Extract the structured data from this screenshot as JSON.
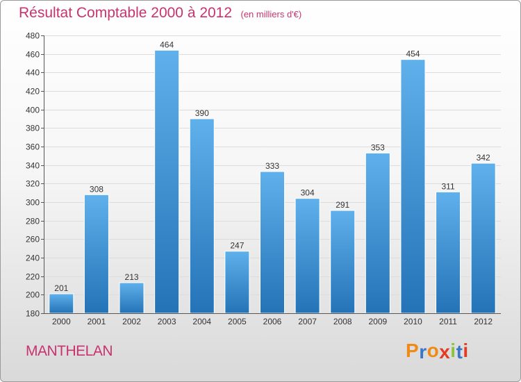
{
  "header": {
    "title": "Résultat Comptable 2000 à 2012",
    "unit_note": "(en milliers d'€)"
  },
  "footer": {
    "commune": "MANTHELAN",
    "logo_text": "Proxiti",
    "logo_letter_colors": [
      "#f08a17",
      "#3a77c9",
      "#f08a17",
      "#e23a24",
      "#8bc23f",
      "#3a77c9",
      "#e23a24"
    ]
  },
  "colors": {
    "title": "#c8336e",
    "bar_top": "#5fb0eb",
    "bar_bottom": "#2473b7",
    "grid": "#dcdcdc",
    "text": "#333333"
  },
  "chart_data": {
    "type": "bar",
    "title": "Résultat Comptable 2000 à 2012",
    "subtitle": "(en milliers d'€)",
    "categories": [
      "2000",
      "2001",
      "2002",
      "2003",
      "2004",
      "2005",
      "2006",
      "2007",
      "2008",
      "2009",
      "2010",
      "2011",
      "2012"
    ],
    "values": [
      201,
      308,
      213,
      464,
      390,
      247,
      333,
      304,
      291,
      353,
      454,
      311,
      342
    ],
    "ylim": [
      180,
      480
    ],
    "yticks": [
      180,
      200,
      220,
      240,
      260,
      280,
      300,
      320,
      340,
      360,
      380,
      400,
      420,
      440,
      460,
      480
    ],
    "grid": "horizontal",
    "legend": "none",
    "data_labels": true
  }
}
